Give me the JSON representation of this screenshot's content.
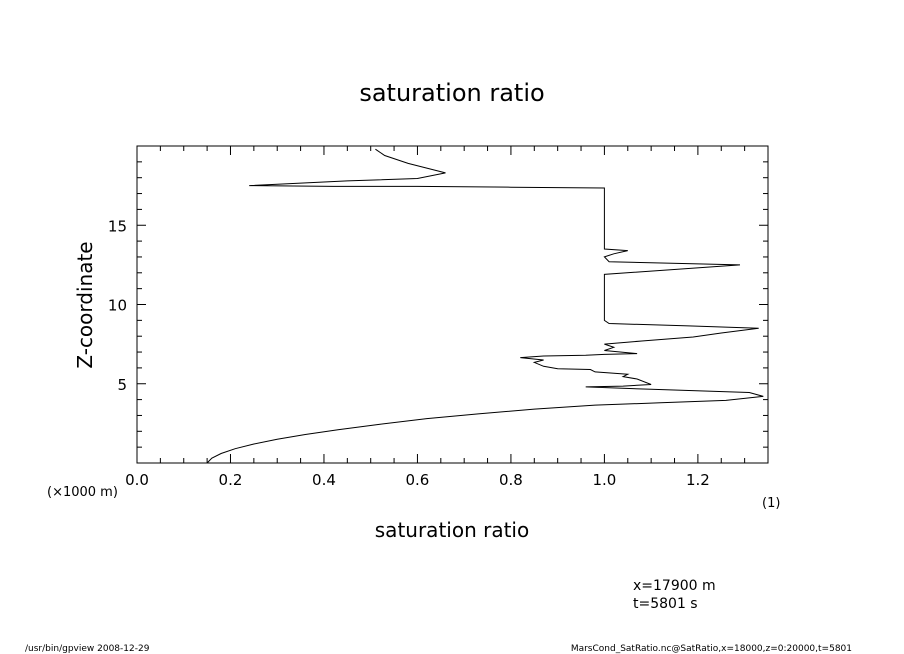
{
  "chart_data": {
    "type": "line",
    "title": "saturation ratio",
    "xlabel": "saturation ratio",
    "ylabel": "Z-coordinate",
    "xlim": [
      0.0,
      1.35
    ],
    "ylim": [
      0,
      20
    ],
    "xticks": [
      0.0,
      0.2,
      0.4,
      0.6,
      0.8,
      1.0,
      1.2
    ],
    "xtick_labels": [
      "0.0",
      "0.2",
      "0.4",
      "0.6",
      "0.8",
      "1.0",
      "1.2"
    ],
    "yticks": [
      5,
      10,
      15
    ],
    "ytick_labels": [
      "5",
      "10",
      "15"
    ],
    "x_unit": "(1)",
    "y_unit": "(×1000 m)",
    "grid": false,
    "series": [
      {
        "points": [
          [
            0.15,
            0.0
          ],
          [
            0.16,
            0.3
          ],
          [
            0.18,
            0.6
          ],
          [
            0.21,
            0.9
          ],
          [
            0.25,
            1.2
          ],
          [
            0.3,
            1.5
          ],
          [
            0.36,
            1.8
          ],
          [
            0.43,
            2.1
          ],
          [
            0.52,
            2.45
          ],
          [
            0.62,
            2.8
          ],
          [
            0.73,
            3.1
          ],
          [
            0.85,
            3.4
          ],
          [
            0.98,
            3.65
          ],
          [
            1.12,
            3.8
          ],
          [
            1.26,
            3.95
          ],
          [
            1.34,
            4.2
          ],
          [
            1.31,
            4.45
          ],
          [
            1.1,
            4.65
          ],
          [
            0.96,
            4.8
          ],
          [
            1.04,
            4.85
          ],
          [
            1.1,
            4.95
          ],
          [
            1.07,
            5.3
          ],
          [
            1.04,
            5.45
          ],
          [
            1.05,
            5.6
          ],
          [
            0.98,
            5.75
          ],
          [
            0.97,
            5.9
          ],
          [
            0.9,
            5.95
          ],
          [
            0.87,
            6.1
          ],
          [
            0.85,
            6.35
          ],
          [
            0.87,
            6.5
          ],
          [
            0.82,
            6.65
          ],
          [
            0.87,
            6.75
          ],
          [
            0.96,
            6.8
          ],
          [
            1.0,
            6.85
          ],
          [
            1.07,
            6.9
          ],
          [
            1.0,
            7.1
          ],
          [
            1.02,
            7.3
          ],
          [
            1.0,
            7.5
          ],
          [
            1.08,
            7.7
          ],
          [
            1.19,
            7.95
          ],
          [
            1.25,
            8.2
          ],
          [
            1.33,
            8.5
          ],
          [
            1.18,
            8.65
          ],
          [
            1.01,
            8.8
          ],
          [
            1.0,
            9.0
          ],
          [
            1.0,
            11.0
          ],
          [
            1.0,
            11.9
          ],
          [
            1.29,
            12.5
          ],
          [
            1.01,
            12.7
          ],
          [
            1.0,
            13.0
          ],
          [
            1.02,
            13.2
          ],
          [
            1.05,
            13.4
          ],
          [
            1.0,
            13.5
          ],
          [
            1.0,
            15.5
          ],
          [
            1.0,
            16.5
          ],
          [
            1.0,
            17.35
          ],
          [
            0.8,
            17.4
          ],
          [
            0.6,
            17.45
          ],
          [
            0.42,
            17.45
          ],
          [
            0.24,
            17.5
          ],
          [
            0.45,
            17.8
          ],
          [
            0.6,
            17.95
          ],
          [
            0.66,
            18.3
          ],
          [
            0.58,
            18.9
          ],
          [
            0.53,
            19.4
          ],
          [
            0.51,
            19.8
          ]
        ]
      }
    ]
  },
  "annotations": {
    "position_x": "x=17900  m",
    "time": "t=5801  s"
  },
  "footer": {
    "left": "/usr/bin/gpview   2008-12-29",
    "right": "MarsCond_SatRatio.nc@SatRatio,x=18000,z=0:20000,t=5801"
  }
}
